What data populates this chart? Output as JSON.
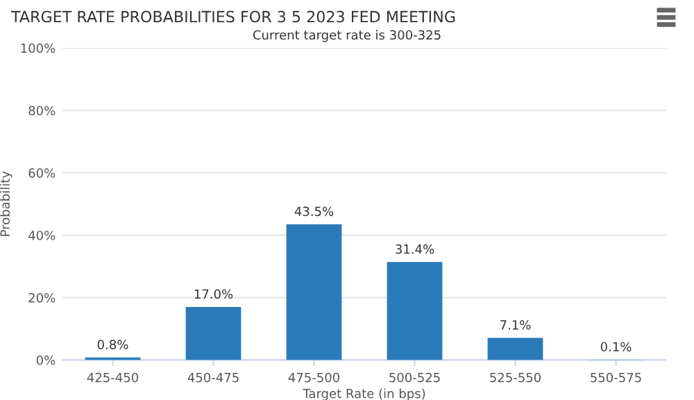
{
  "chart_data": {
    "type": "bar",
    "title": "TARGET RATE PROBABILITIES FOR 3 5 2023 FED MEETING",
    "subtitle": "Current target rate is 300-325",
    "xlabel": "Target Rate (in bps)",
    "ylabel": "Probability",
    "categories": [
      "425-450",
      "450-475",
      "475-500",
      "500-525",
      "525-550",
      "550-575"
    ],
    "values": [
      0.8,
      17.0,
      43.5,
      31.4,
      7.1,
      0.1
    ],
    "value_labels": [
      "0.8%",
      "17.0%",
      "43.5%",
      "31.4%",
      "7.1%",
      "0.1%"
    ],
    "color": "#2b7bba",
    "ylim": [
      0,
      100
    ],
    "yticks": [
      {
        "value": 0,
        "label": "0%"
      },
      {
        "value": 20,
        "label": "20%"
      },
      {
        "value": 40,
        "label": "40%"
      },
      {
        "value": 60,
        "label": "60%"
      },
      {
        "value": 80,
        "label": "80%"
      },
      {
        "value": 100,
        "label": "100%"
      }
    ],
    "grid": "y",
    "legend": false
  }
}
